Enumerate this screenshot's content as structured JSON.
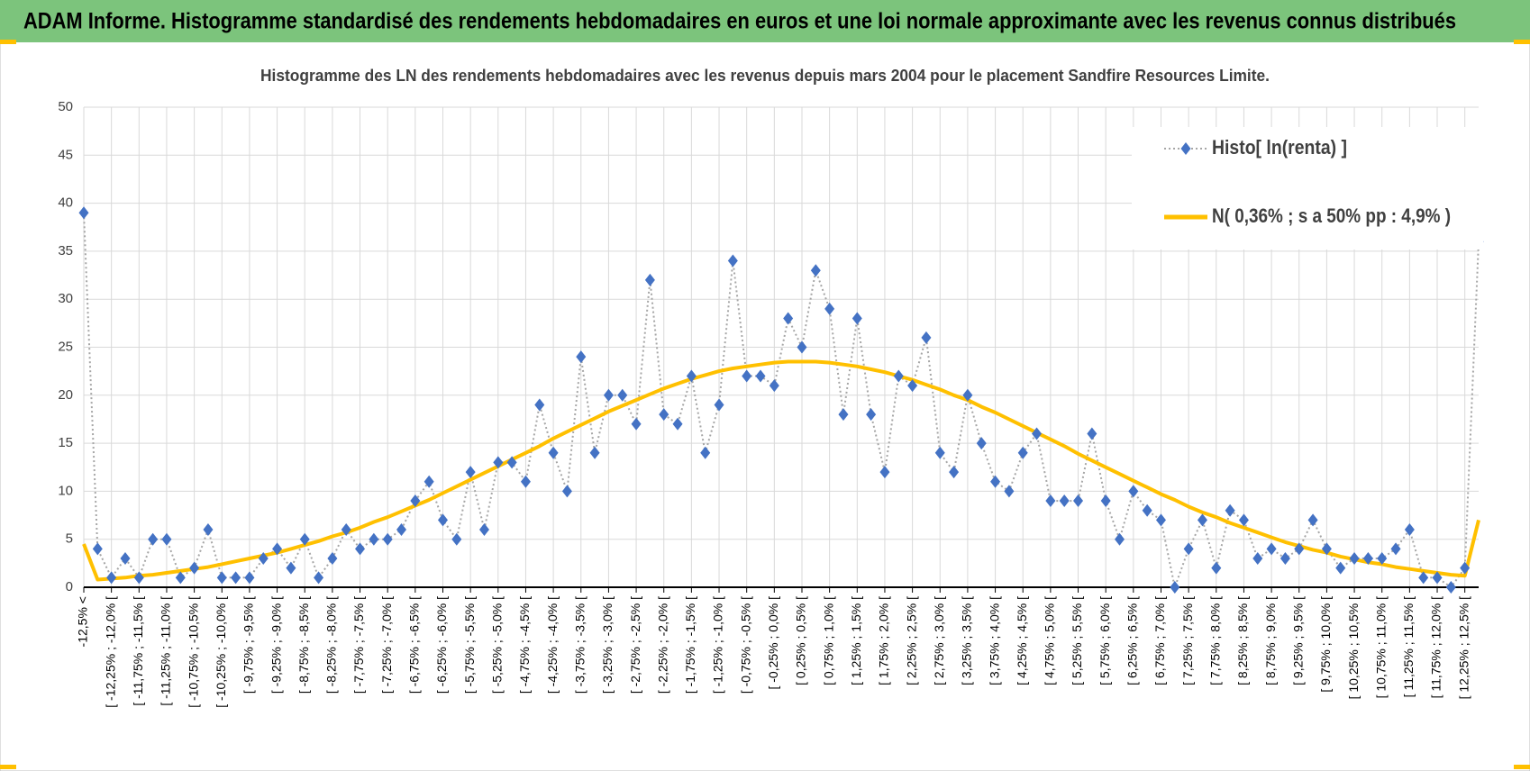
{
  "header": {
    "title": "ADAM Informe. Histogramme standardisé des rendements hebdomadaires en euros et une loi normale approximante avec les revenus connus distribués"
  },
  "chart_data": {
    "type": "line",
    "title": "Histogramme  des LN des rendements hebdomadaires avec les revenus depuis mars 2004 pour le placement Sandfire Resources Limite.",
    "categories": [
      "-12,5% <",
      null,
      "[ -12,25% ; -12,0% [",
      null,
      "[ -11,75% ; -11,5% [",
      null,
      "[ -11,25% ; -11,0% [",
      null,
      "[ -10,75% ; -10,5% [",
      null,
      "[ -10,25% ; -10,0% [",
      null,
      "[ -9,75% ; -9,5% [",
      null,
      "[ -9,25% ; -9,0% [",
      null,
      "[ -8,75% ; -8,5% [",
      null,
      "[ -8,25% ; -8,0% [",
      null,
      "[ -7,75% ; -7,5% [",
      null,
      "[ -7,25% ; -7,0% [",
      null,
      "[ -6,75% ; -6,5% [",
      null,
      "[ -6,25% ; -6,0% [",
      null,
      "[ -5,75% ; -5,5% [",
      null,
      "[ -5,25% ; -5,0% [",
      null,
      "[ -4,75% ; -4,5% [",
      null,
      "[ -4,25% ; -4,0% [",
      null,
      "[ -3,75% ; -3,5% [",
      null,
      "[ -3,25% ; -3,0% [",
      null,
      "[ -2,75% ; -2,5% [",
      null,
      "[ -2,25% ; -2,0% [",
      null,
      "[ -1,75% ; -1,5% [",
      null,
      "[ -1,25% ; -1,0% [",
      null,
      "[ -0,75% ; -0,5% [",
      null,
      "[ -0,25% ; 0,0% [",
      null,
      "[ 0,25% ; 0,5% [",
      null,
      "[ 0,75% ; 1,0% [",
      null,
      "[ 1,25% ; 1,5% [",
      null,
      "[ 1,75% ; 2,0% [",
      null,
      "[ 2,25% ; 2,5% [",
      null,
      "[ 2,75% ; 3,0% [",
      null,
      "[ 3,25% ; 3,5% [",
      null,
      "[ 3,75% ; 4,0% [",
      null,
      "[ 4,25% ; 4,5% [",
      null,
      "[ 4,75% ; 5,0% [",
      null,
      "[ 5,25% ; 5,5% [",
      null,
      "[ 5,75% ; 6,0% [",
      null,
      "[ 6,25% ; 6,5% [",
      null,
      "[ 6,75% ; 7,0% [",
      null,
      "[ 7,25% ; 7,5% [",
      null,
      "[ 7,75% ; 8,0% [",
      null,
      "[ 8,25% ; 8,5% [",
      null,
      "[ 8,75% ; 9,0% [",
      null,
      "[ 9,25% ; 9,5% [",
      null,
      "[ 9,75% ; 10,0% [",
      null,
      "[ 10,25% ; 10,5% [",
      null,
      "[ 10,75% ; 11,0% [",
      null,
      "[ 11,25% ; 11,5% [",
      null,
      "[ 11,75% ; 12,0% [",
      null,
      "[ 12,25% ; 12,5% [",
      null
    ],
    "series": [
      {
        "name": "Histo[ ln(renta) ]",
        "color": "#4472c4",
        "line_color": "#a6a6a6",
        "values": [
          39,
          4,
          1,
          3,
          1,
          5,
          5,
          1,
          2,
          6,
          1,
          1,
          1,
          3,
          4,
          2,
          5,
          1,
          3,
          6,
          4,
          5,
          5,
          6,
          9,
          11,
          7,
          5,
          12,
          6,
          13,
          13,
          11,
          19,
          14,
          10,
          24,
          14,
          20,
          20,
          17,
          32,
          18,
          17,
          22,
          14,
          19,
          34,
          22,
          22,
          21,
          28,
          25,
          33,
          29,
          18,
          28,
          18,
          12,
          22,
          21,
          26,
          14,
          12,
          20,
          15,
          11,
          10,
          14,
          16,
          9,
          9,
          9,
          16,
          9,
          5,
          10,
          8,
          7,
          0,
          4,
          7,
          2,
          8,
          7,
          3,
          4,
          3,
          4,
          7,
          4,
          2,
          3,
          3,
          3,
          4,
          6,
          1,
          1,
          0,
          2,
          36
        ]
      },
      {
        "name": "N( 0,36% ; s a 50% pp : 4,9% )",
        "color": "#ffc000",
        "values": [
          4.5,
          0.8,
          0.9,
          1.0,
          1.2,
          1.3,
          1.5,
          1.7,
          1.9,
          2.1,
          2.4,
          2.7,
          3.0,
          3.3,
          3.6,
          4.0,
          4.4,
          4.8,
          5.3,
          5.7,
          6.2,
          6.8,
          7.3,
          7.9,
          8.5,
          9.1,
          9.8,
          10.5,
          11.2,
          11.9,
          12.6,
          13.3,
          14.0,
          14.7,
          15.5,
          16.2,
          16.9,
          17.6,
          18.3,
          18.9,
          19.5,
          20.1,
          20.7,
          21.2,
          21.7,
          22.1,
          22.5,
          22.8,
          23.0,
          23.2,
          23.4,
          23.5,
          23.5,
          23.5,
          23.4,
          23.2,
          23.0,
          22.7,
          22.4,
          22.0,
          21.6,
          21.1,
          20.6,
          20.0,
          19.5,
          18.8,
          18.2,
          17.5,
          16.8,
          16.1,
          15.4,
          14.7,
          13.9,
          13.2,
          12.5,
          11.8,
          11.1,
          10.4,
          9.7,
          9.1,
          8.4,
          7.8,
          7.3,
          6.7,
          6.2,
          5.7,
          5.2,
          4.7,
          4.3,
          3.9,
          3.6,
          3.2,
          2.9,
          2.6,
          2.4,
          2.1,
          1.9,
          1.7,
          1.5,
          1.3,
          1.2,
          7.0
        ]
      }
    ],
    "ylim": [
      0,
      50
    ],
    "yticks": [
      0,
      5,
      10,
      15,
      20,
      25,
      30,
      35,
      40,
      45,
      50
    ],
    "grid": true,
    "legend": "top-right"
  }
}
